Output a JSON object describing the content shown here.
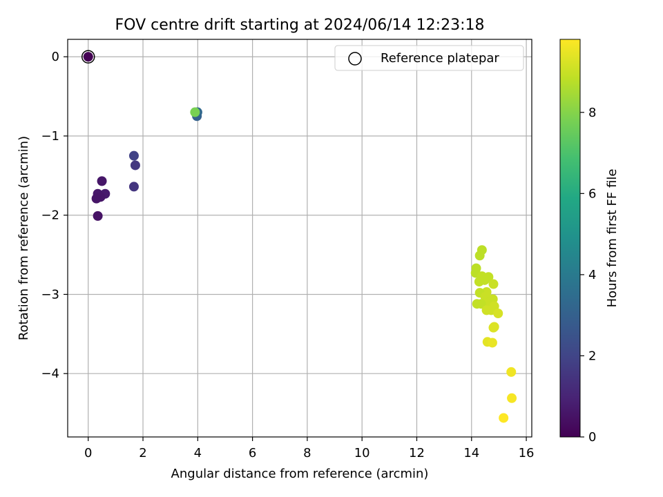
{
  "chart_data": {
    "type": "scatter",
    "title": "FOV centre drift starting at 2024/06/14 12:23:18",
    "xlabel": "Angular distance from reference (arcmin)",
    "ylabel": "Rotation from reference (arcmin)",
    "xlim": [
      -0.75,
      16.2
    ],
    "ylim": [
      -4.8,
      0.22
    ],
    "xticks": [
      0,
      2,
      4,
      6,
      8,
      10,
      12,
      14,
      16
    ],
    "yticks": [
      0,
      -1,
      -2,
      -3,
      -4
    ],
    "grid": true,
    "legend": {
      "position": "top-right",
      "entries": [
        "Reference platepar"
      ]
    },
    "reference_point": {
      "x": 0,
      "y": 0,
      "label": "Reference platepar"
    },
    "colorbar": {
      "label": "Hours from first FF file",
      "range": [
        0,
        9.8
      ],
      "ticks": [
        0,
        2,
        4,
        6,
        8
      ],
      "colormap": "viridis"
    },
    "points": [
      {
        "x": 0.0,
        "y": 0.0,
        "c": 0.0
      },
      {
        "x": 0.5,
        "y": -1.57,
        "c": 0.6
      },
      {
        "x": 0.62,
        "y": -1.73,
        "c": 0.7
      },
      {
        "x": 0.35,
        "y": -1.73,
        "c": 0.65
      },
      {
        "x": 0.45,
        "y": -1.77,
        "c": 0.6
      },
      {
        "x": 0.3,
        "y": -1.79,
        "c": 0.55
      },
      {
        "x": 0.35,
        "y": -2.01,
        "c": 0.5
      },
      {
        "x": 1.67,
        "y": -1.25,
        "c": 1.9
      },
      {
        "x": 1.72,
        "y": -1.37,
        "c": 1.6
      },
      {
        "x": 1.67,
        "y": -1.64,
        "c": 1.5
      },
      {
        "x": 3.97,
        "y": -0.75,
        "c": 3.0
      },
      {
        "x": 3.99,
        "y": -0.7,
        "c": 3.3
      },
      {
        "x": 3.9,
        "y": -0.7,
        "c": 7.8
      },
      {
        "x": 14.38,
        "y": -2.44,
        "c": 8.8
      },
      {
        "x": 14.3,
        "y": -2.51,
        "c": 8.8
      },
      {
        "x": 14.17,
        "y": -2.67,
        "c": 8.8
      },
      {
        "x": 14.15,
        "y": -2.73,
        "c": 8.8
      },
      {
        "x": 14.38,
        "y": -2.77,
        "c": 8.9
      },
      {
        "x": 14.62,
        "y": -2.78,
        "c": 8.9
      },
      {
        "x": 14.28,
        "y": -2.84,
        "c": 8.9
      },
      {
        "x": 14.48,
        "y": -2.82,
        "c": 8.9
      },
      {
        "x": 14.8,
        "y": -2.87,
        "c": 9.0
      },
      {
        "x": 14.55,
        "y": -2.97,
        "c": 9.0
      },
      {
        "x": 14.3,
        "y": -2.98,
        "c": 8.9
      },
      {
        "x": 14.5,
        "y": -3.03,
        "c": 9.0
      },
      {
        "x": 14.78,
        "y": -3.06,
        "c": 9.0
      },
      {
        "x": 14.65,
        "y": -3.1,
        "c": 9.0
      },
      {
        "x": 14.2,
        "y": -3.12,
        "c": 8.9
      },
      {
        "x": 14.35,
        "y": -3.12,
        "c": 8.9
      },
      {
        "x": 14.83,
        "y": -3.15,
        "c": 9.1
      },
      {
        "x": 14.55,
        "y": -3.2,
        "c": 9.1
      },
      {
        "x": 14.72,
        "y": -3.2,
        "c": 9.1
      },
      {
        "x": 14.97,
        "y": -3.24,
        "c": 9.2
      },
      {
        "x": 14.83,
        "y": -3.41,
        "c": 9.3
      },
      {
        "x": 14.8,
        "y": -3.42,
        "c": 9.3
      },
      {
        "x": 14.58,
        "y": -3.6,
        "c": 9.4
      },
      {
        "x": 14.76,
        "y": -3.61,
        "c": 9.5
      },
      {
        "x": 15.45,
        "y": -3.98,
        "c": 9.6
      },
      {
        "x": 15.47,
        "y": -4.31,
        "c": 9.7
      },
      {
        "x": 15.17,
        "y": -4.56,
        "c": 9.8
      }
    ]
  }
}
